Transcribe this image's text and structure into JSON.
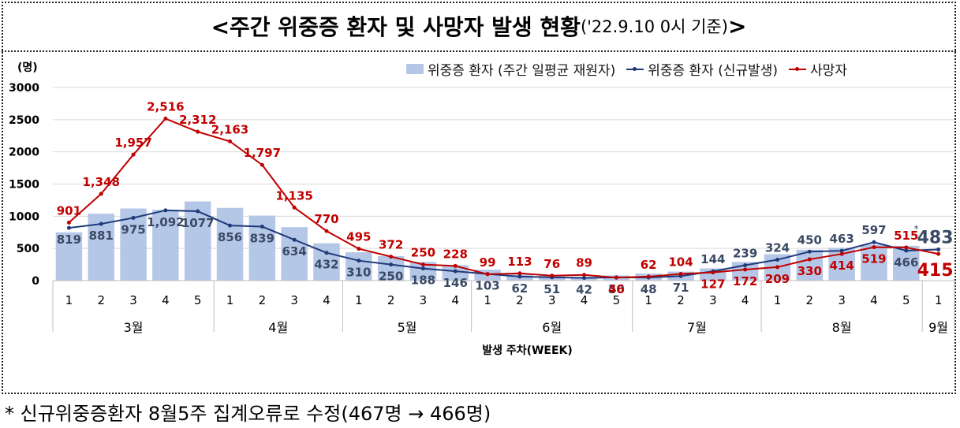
{
  "title": {
    "main": "<주간 위중증 환자 및 사망자 발생 현황",
    "sub": "('22.9.10 0시 기준)",
    "close": ">"
  },
  "footnote": "* 신규위중증환자 8월5주 집계오류로 수정(467명 → 466명)",
  "legend": {
    "bar": "위중증 환자 (주간 일평균 재원자)",
    "line1": "위중증 환자 (신규발생)",
    "line2": "사망자"
  },
  "colors": {
    "bar": "#b4c7e7",
    "severe_line": "#1f3a7a",
    "death_line": "#c00000",
    "severe_label": "#3a4a64"
  },
  "chart_data": {
    "type": "bar",
    "unit_label": "(명)",
    "xlabel": "발생 주차(WEEK)",
    "ylim": [
      0,
      3000
    ],
    "y_ticks": [
      0,
      500,
      1000,
      1500,
      2000,
      2500,
      3000
    ],
    "months": [
      {
        "label": "3월",
        "weeks": [
          "1",
          "2",
          "3",
          "4",
          "5"
        ]
      },
      {
        "label": "4월",
        "weeks": [
          "1",
          "2",
          "3",
          "4"
        ]
      },
      {
        "label": "5월",
        "weeks": [
          "1",
          "2",
          "3",
          "4"
        ]
      },
      {
        "label": "6월",
        "weeks": [
          "1",
          "2",
          "3",
          "4",
          "5"
        ]
      },
      {
        "label": "7월",
        "weeks": [
          "1",
          "2",
          "3",
          "4"
        ]
      },
      {
        "label": "8월",
        "weeks": [
          "1",
          "2",
          "3",
          "4",
          "5"
        ]
      },
      {
        "label": "9월",
        "weeks": [
          "1"
        ]
      }
    ],
    "series": [
      {
        "name": "위중증 환자 (주간 일평균 재원자)",
        "kind": "bar",
        "values": [
          750,
          1040,
          1120,
          1100,
          1230,
          1130,
          1010,
          830,
          580,
          440,
          380,
          290,
          240,
          170,
          110,
          80,
          60,
          80,
          110,
          140,
          190,
          290,
          410,
          480,
          510,
          560,
          540
        ]
      },
      {
        "name": "위중증 환자 (신규발생)",
        "kind": "line",
        "values": [
          819,
          881,
          975,
          1092,
          1077,
          856,
          839,
          634,
          432,
          310,
          250,
          188,
          146,
          103,
          62,
          51,
          42,
          50,
          48,
          71,
          144,
          239,
          324,
          450,
          463,
          597,
          466
        ],
        "labels": [
          "819",
          "881",
          "975",
          "1,092",
          "1077",
          "856",
          "839",
          "634",
          "432",
          "310",
          "250",
          "188",
          "146",
          "103",
          "62",
          "51",
          "42",
          "50",
          "48",
          "71",
          "144",
          "239",
          "324",
          "450",
          "463",
          "597",
          "466"
        ]
      },
      {
        "name": "사망자",
        "kind": "line",
        "values": [
          901,
          1348,
          1957,
          2516,
          2312,
          2163,
          1797,
          1135,
          770,
          495,
          372,
          250,
          228,
          99,
          113,
          76,
          89,
          46,
          62,
          104,
          127,
          172,
          209,
          330,
          414,
          519,
          515
        ],
        "labels": [
          "901",
          "1,348",
          "1,957",
          "2,516",
          "2,312",
          "2,163",
          "1,797",
          "1,135",
          "770",
          "495",
          "372",
          "250",
          "228",
          "99",
          "113",
          "76",
          "89",
          "46",
          "62",
          "104",
          "127",
          "172",
          "209",
          "330",
          "414",
          "519",
          "515"
        ]
      }
    ],
    "last_week": {
      "severe": 483,
      "deaths": 415,
      "severe_label": "483",
      "deaths_label": "415",
      "marker": "*"
    }
  }
}
